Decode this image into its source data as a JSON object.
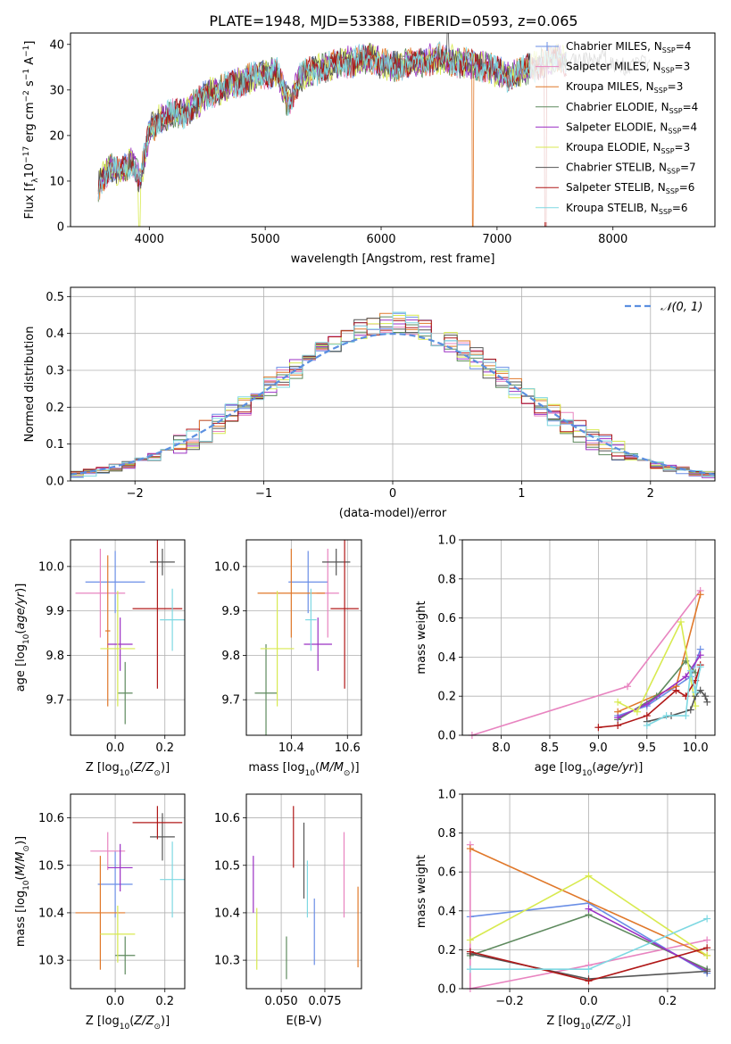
{
  "figure": {
    "title": "PLATE=1948, MJD=53388, FIBERID=0593, z=0.065"
  },
  "colors": [
    "#6a8ee6",
    "#e884c0",
    "#e0782a",
    "#5e8a5e",
    "#9b30c4",
    "#d8ea50",
    "#555555",
    "#b01818",
    "#7ed8e2"
  ],
  "legend": [
    {
      "name": "Chabrier MILES, N",
      "sub": "SSP",
      "rest": "=4"
    },
    {
      "name": "Salpeter MILES, N",
      "sub": "SSP",
      "rest": "=3"
    },
    {
      "name": "Kroupa MILES, N",
      "sub": "SSP",
      "rest": "=3"
    },
    {
      "name": "Chabrier ELODIE, N",
      "sub": "SSP",
      "rest": "=4"
    },
    {
      "name": "Salpeter ELODIE, N",
      "sub": "SSP",
      "rest": "=4"
    },
    {
      "name": "Kroupa ELODIE, N",
      "sub": "SSP",
      "rest": "=3"
    },
    {
      "name": "Chabrier STELIB, N",
      "sub": "SSP",
      "rest": "=7"
    },
    {
      "name": "Salpeter STELIB, N",
      "sub": "SSP",
      "rest": "=6"
    },
    {
      "name": "Kroupa STELIB, N",
      "sub": "SSP",
      "rest": "=6"
    }
  ],
  "chart_data": [
    {
      "id": "spectrum",
      "type": "line",
      "xlabel": "wavelength [Angstrom, rest frame]",
      "ylabel": "Flux [f",
      "ylabel_full": "Flux [fλ10^-17 erg cm^-2 s^-1 A^-1]",
      "xlim": [
        3320,
        8880
      ],
      "ylim": [
        0,
        42.5
      ],
      "xticks": [
        4000,
        5000,
        6000,
        7000,
        8000
      ],
      "yticks": [
        0,
        10,
        20,
        30,
        40
      ],
      "series_anchor": {
        "x": [
          3560,
          3650,
          3750,
          3850,
          3920,
          4000,
          4100,
          4300,
          4500,
          4700,
          4900,
          5100,
          5200,
          5300,
          5500,
          5700,
          5900,
          6100,
          6300,
          6500,
          6700,
          6900,
          7100,
          7300,
          7500,
          7700,
          7900,
          8100,
          8300
        ],
        "y": [
          9,
          13,
          12,
          14,
          10,
          21,
          24,
          25,
          29,
          31,
          33,
          34,
          27,
          33,
          35,
          36,
          37,
          35,
          36,
          37,
          36,
          35,
          33,
          35,
          37,
          36,
          37,
          35,
          36
        ]
      }
    },
    {
      "id": "residuals",
      "type": "histogram",
      "xlabel": "(data-model)/error",
      "ylabel": "Normed distribution",
      "xlim": [
        -2.5,
        2.5
      ],
      "ylim": [
        0,
        0.525
      ],
      "xticks": [
        -2,
        -1,
        0,
        1,
        2
      ],
      "yticks": [
        0.0,
        0.1,
        0.2,
        0.3,
        0.4,
        0.5
      ],
      "legend": "𝒩(0, 1)",
      "bin_width": 0.1,
      "bin_start": -2.5
    },
    {
      "id": "age-vs-Z",
      "type": "errorbar",
      "xlabel": "Z [log",
      "ylabel": "age [log",
      "xlim": [
        -0.18,
        0.28
      ],
      "ylim": [
        9.62,
        10.06
      ],
      "xticks": [
        0.0,
        0.2
      ],
      "yticks": [
        9.7,
        9.8,
        9.9,
        10.0
      ],
      "points": [
        {
          "x": 0.0,
          "y": 9.965,
          "xerr": 0.12,
          "yerr": 0.07
        },
        {
          "x": -0.06,
          "y": 9.94,
          "xerr": 0.1,
          "yerr": 0.1
        },
        {
          "x": -0.03,
          "y": 9.855,
          "xerr": 0.01,
          "yerr": 0.17
        },
        {
          "x": 0.04,
          "y": 9.715,
          "xerr": 0.03,
          "yerr": 0.07
        },
        {
          "x": 0.02,
          "y": 9.825,
          "xerr": 0.05,
          "yerr": 0.06
        },
        {
          "x": 0.01,
          "y": 9.815,
          "xerr": 0.07,
          "yerr": 0.13
        },
        {
          "x": 0.19,
          "y": 10.01,
          "xerr": 0.05,
          "yerr": 0.03
        },
        {
          "x": 0.17,
          "y": 9.905,
          "xerr": 0.1,
          "yerr": 0.18
        },
        {
          "x": 0.23,
          "y": 9.88,
          "xerr": 0.05,
          "yerr": 0.07
        }
      ]
    },
    {
      "id": "age-vs-mass",
      "type": "errorbar",
      "xlabel": "mass [log",
      "ylabel": "",
      "xlim": [
        10.24,
        10.65
      ],
      "ylim": [
        9.62,
        10.06
      ],
      "xticks": [
        10.4,
        10.6
      ],
      "yticks": [
        9.7,
        9.8,
        9.9,
        10.0
      ],
      "points": [
        {
          "x": 10.46,
          "y": 9.965,
          "xerr": 0.07,
          "yerr": 0.07
        },
        {
          "x": 10.53,
          "y": 9.94,
          "xerr": 0.04,
          "yerr": 0.1
        },
        {
          "x": 10.4,
          "y": 9.94,
          "xerr": 0.12,
          "yerr": 0.1
        },
        {
          "x": 10.31,
          "y": 9.715,
          "xerr": 0.04,
          "yerr": 0.11
        },
        {
          "x": 10.495,
          "y": 9.825,
          "xerr": 0.05,
          "yerr": 0.06
        },
        {
          "x": 10.35,
          "y": 9.815,
          "xerr": 0.06,
          "yerr": 0.13
        },
        {
          "x": 10.56,
          "y": 10.01,
          "xerr": 0.05,
          "yerr": 0.03
        },
        {
          "x": 10.59,
          "y": 9.905,
          "xerr": 0.05,
          "yerr": 0.18
        },
        {
          "x": 10.47,
          "y": 9.88,
          "xerr": 0.02,
          "yerr": 0.07
        }
      ]
    },
    {
      "id": "weight-vs-age",
      "type": "line",
      "xlabel": "age [log",
      "ylabel": "mass weight",
      "xlim": [
        7.6,
        10.2
      ],
      "ylim": [
        0,
        1
      ],
      "xticks": [
        8.0,
        8.5,
        9.0,
        9.5,
        10.0
      ],
      "yticks": [
        0.0,
        0.2,
        0.4,
        0.6,
        0.8,
        1.0
      ],
      "series": [
        {
          "x": [
            9.2,
            9.5,
            9.95,
            10.05
          ],
          "y": [
            0.1,
            0.15,
            0.3,
            0.44
          ]
        },
        {
          "x": [
            7.7,
            9.3,
            10.05
          ],
          "y": [
            0.0,
            0.25,
            0.74
          ]
        },
        {
          "x": [
            9.2,
            9.8,
            10.05
          ],
          "y": [
            0.12,
            0.25,
            0.72
          ]
        },
        {
          "x": [
            9.2,
            9.6,
            9.9,
            10.0
          ],
          "y": [
            0.08,
            0.2,
            0.38,
            0.32
          ]
        },
        {
          "x": [
            9.2,
            9.5,
            9.9,
            10.05
          ],
          "y": [
            0.09,
            0.16,
            0.3,
            0.41
          ]
        },
        {
          "x": [
            9.2,
            9.4,
            9.85,
            10.0
          ],
          "y": [
            0.17,
            0.12,
            0.58,
            0.15
          ]
        },
        {
          "x": [
            9.5,
            9.75,
            9.95,
            10.0,
            10.05,
            10.1,
            10.12
          ],
          "y": [
            0.07,
            0.1,
            0.13,
            0.2,
            0.23,
            0.2,
            0.17
          ]
        },
        {
          "x": [
            9.0,
            9.2,
            9.5,
            9.8,
            9.9,
            10.0,
            10.05
          ],
          "y": [
            0.04,
            0.05,
            0.1,
            0.23,
            0.2,
            0.28,
            0.36
          ]
        },
        {
          "x": [
            9.5,
            9.7,
            9.9,
            9.95,
            10.0,
            10.05
          ],
          "y": [
            0.05,
            0.1,
            0.1,
            0.33,
            0.22,
            0.35
          ]
        }
      ]
    },
    {
      "id": "mass-vs-Z",
      "type": "errorbar",
      "xlabel": "Z [log",
      "ylabel": "mass [log",
      "xlim": [
        -0.18,
        0.28
      ],
      "ylim": [
        10.24,
        10.65
      ],
      "xticks": [
        0.0,
        0.2
      ],
      "yticks": [
        10.3,
        10.4,
        10.5,
        10.6
      ],
      "points": [
        {
          "x": 0.0,
          "y": 10.46,
          "xerr": 0.07,
          "yerr": 0.07
        },
        {
          "x": -0.03,
          "y": 10.53,
          "xerr": 0.07,
          "yerr": 0.04
        },
        {
          "x": -0.06,
          "y": 10.4,
          "xerr": 0.1,
          "yerr": 0.12
        },
        {
          "x": 0.04,
          "y": 10.31,
          "xerr": 0.04,
          "yerr": 0.04
        },
        {
          "x": 0.02,
          "y": 10.495,
          "xerr": 0.05,
          "yerr": 0.05
        },
        {
          "x": 0.01,
          "y": 10.355,
          "xerr": 0.07,
          "yerr": 0.06
        },
        {
          "x": 0.19,
          "y": 10.56,
          "xerr": 0.05,
          "yerr": 0.05
        },
        {
          "x": 0.17,
          "y": 10.59,
          "xerr": 0.1,
          "yerr": 0.035
        },
        {
          "x": 0.23,
          "y": 10.47,
          "xerr": 0.05,
          "yerr": 0.08
        }
      ]
    },
    {
      "id": "mass-vs-EBV",
      "type": "errorbar",
      "xlabel": "E(B-V)",
      "ylabel": "",
      "xlim": [
        0.03,
        0.096
      ],
      "ylim": [
        10.24,
        10.65
      ],
      "xticks": [
        0.05,
        0.075
      ],
      "xtick_labels": [
        "0.050",
        "0.075"
      ],
      "yticks": [
        10.3,
        10.4,
        10.5,
        10.6
      ],
      "points": [
        {
          "x": 0.069,
          "y": 10.36,
          "xerr": 0.0,
          "yerr": 0.07
        },
        {
          "x": 0.086,
          "y": 10.48,
          "xerr": 0.0,
          "yerr": 0.09
        },
        {
          "x": 0.094,
          "y": 10.37,
          "xerr": 0.0,
          "yerr": 0.085
        },
        {
          "x": 0.053,
          "y": 10.305,
          "xerr": 0.0,
          "yerr": 0.045
        },
        {
          "x": 0.034,
          "y": 10.46,
          "xerr": 0.0,
          "yerr": 0.06
        },
        {
          "x": 0.036,
          "y": 10.345,
          "xerr": 0.0,
          "yerr": 0.065
        },
        {
          "x": 0.063,
          "y": 10.51,
          "xerr": 0.0,
          "yerr": 0.08
        },
        {
          "x": 0.057,
          "y": 10.56,
          "xerr": 0.0,
          "yerr": 0.065
        },
        {
          "x": 0.065,
          "y": 10.45,
          "xerr": 0.0,
          "yerr": 0.06
        }
      ]
    },
    {
      "id": "weight-vs-Z",
      "type": "line",
      "xlabel": "Z [log",
      "ylabel": "mass weight",
      "xlim": [
        -0.32,
        0.32
      ],
      "ylim": [
        0,
        1
      ],
      "xticks": [
        -0.2,
        0.0,
        0.2
      ],
      "xtick_labels": [
        "−0.2",
        "0.0",
        "0.2"
      ],
      "yticks": [
        0.0,
        0.2,
        0.4,
        0.6,
        0.8,
        1.0
      ],
      "series": [
        {
          "x": [
            -0.3,
            0.0,
            0.3
          ],
          "y": [
            0.37,
            0.44,
            0.08
          ]
        },
        {
          "x": [
            -0.3,
            -0.3,
            0.0,
            0.3
          ],
          "y": [
            0.74,
            0.0,
            0.12,
            0.25
          ]
        },
        {
          "x": [
            -0.3,
            0.3
          ],
          "y": [
            0.72,
            0.17
          ]
        },
        {
          "x": [
            -0.3,
            0.0,
            0.3
          ],
          "y": [
            0.17,
            0.38,
            0.1
          ]
        },
        {
          "x": [
            0.0,
            0.3
          ],
          "y": [
            0.41,
            0.09
          ]
        },
        {
          "x": [
            -0.3,
            0.0,
            0.3
          ],
          "y": [
            0.25,
            0.58,
            0.17
          ]
        },
        {
          "x": [
            -0.3,
            0.0,
            0.3
          ],
          "y": [
            0.18,
            0.05,
            0.09
          ]
        },
        {
          "x": [
            -0.3,
            0.0,
            0.3
          ],
          "y": [
            0.19,
            0.04,
            0.21
          ]
        },
        {
          "x": [
            -0.3,
            0.0,
            0.3
          ],
          "y": [
            0.1,
            0.1,
            0.36
          ]
        }
      ]
    }
  ]
}
